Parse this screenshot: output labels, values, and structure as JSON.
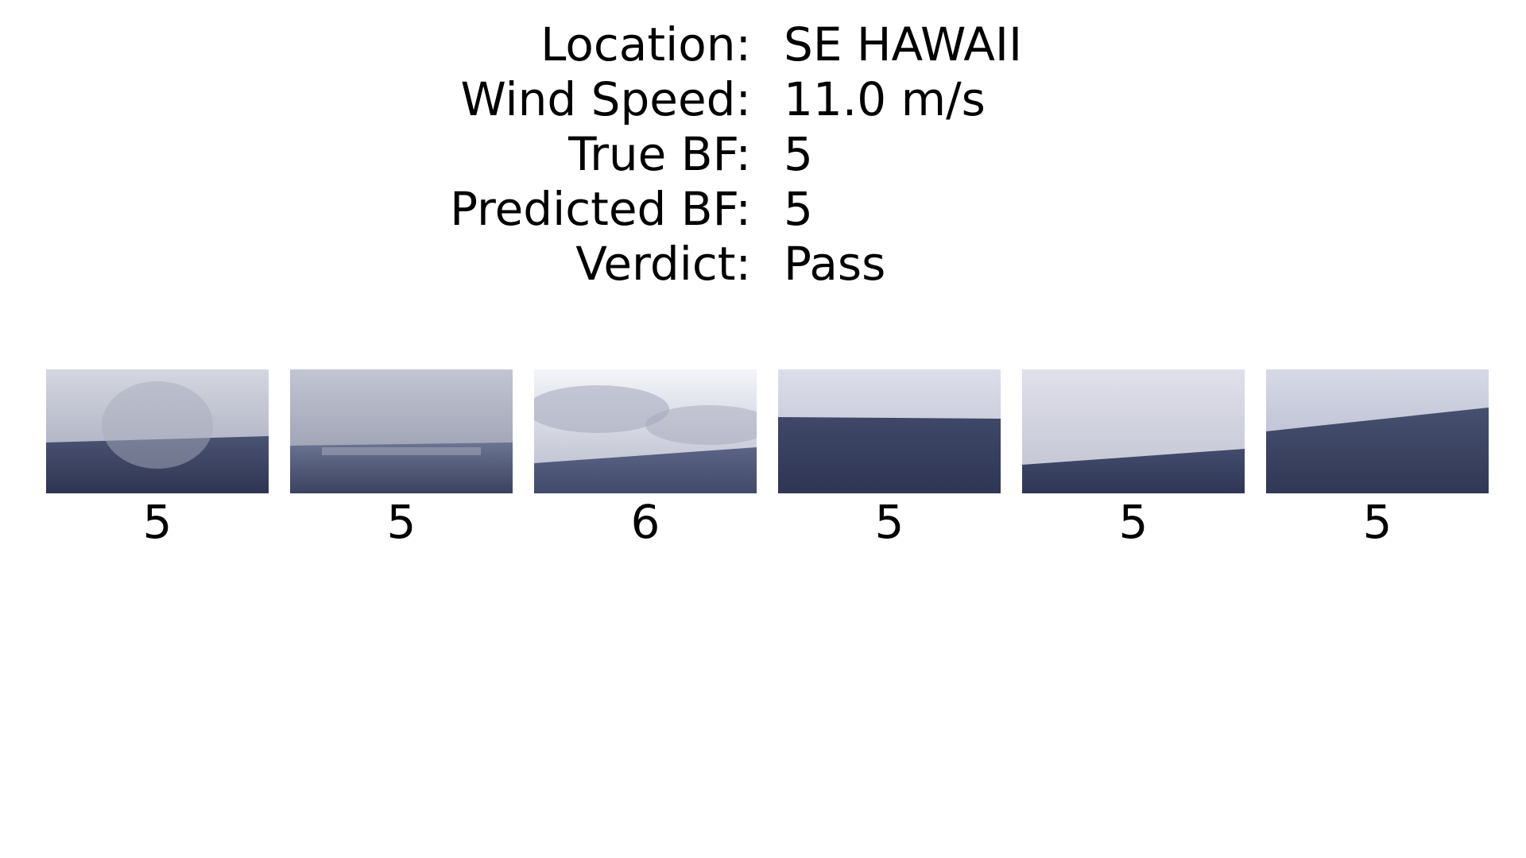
{
  "info": [
    {
      "label": "Location:",
      "value": "SE HAWAII"
    },
    {
      "label": "Wind Speed:",
      "value": "11.0 m/s"
    },
    {
      "label": "True BF:",
      "value": "5"
    },
    {
      "label": "Predicted BF:",
      "value": "5"
    },
    {
      "label": "Verdict:",
      "value": "Pass"
    }
  ],
  "thumbnails": [
    {
      "label": "5",
      "sky": "#b9bccb",
      "sea": "#3c4564"
    },
    {
      "label": "5",
      "sky": "#a9acbd",
      "sea": "#47506d"
    },
    {
      "label": "6",
      "sky": "#d3d6e3",
      "sea": "#4b5578"
    },
    {
      "label": "5",
      "sky": "#c5c8d8",
      "sea": "#3f4868"
    },
    {
      "label": "5",
      "sky": "#cfd0dc",
      "sea": "#3a4363"
    },
    {
      "label": "5",
      "sky": "#c2c6d6",
      "sea": "#3d4667"
    }
  ]
}
